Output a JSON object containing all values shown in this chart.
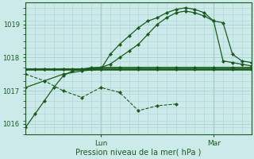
{
  "background_color": "#cceaea",
  "grid_color": "#aad4d4",
  "line_color": "#1a5c1a",
  "ylabel_ticks": [
    1016,
    1017,
    1018,
    1019
  ],
  "xlim": [
    0,
    72
  ],
  "ylim": [
    1015.7,
    1019.65
  ],
  "xlabel": "Pression niveau de la mer( hPa )",
  "lun_x": 24,
  "mar_x": 60,
  "series": [
    {
      "x": [
        0,
        3,
        6,
        9,
        12,
        15,
        18,
        21,
        24,
        27,
        30,
        33,
        36,
        39,
        42,
        45,
        48,
        51,
        54,
        57,
        60,
        63,
        66,
        69,
        72
      ],
      "y": [
        1015.9,
        1016.3,
        1016.7,
        1017.1,
        1017.45,
        1017.6,
        1017.65,
        1017.7,
        1017.7,
        1017.8,
        1018.0,
        1018.2,
        1018.4,
        1018.7,
        1019.0,
        1019.2,
        1019.35,
        1019.4,
        1019.35,
        1019.25,
        1019.1,
        1017.9,
        1017.85,
        1017.8,
        1017.75
      ],
      "linestyle": "-",
      "marker": "D",
      "markersize": 2,
      "linewidth": 0.9
    },
    {
      "x": [
        0,
        3,
        6,
        9,
        12,
        15,
        18,
        21,
        24,
        27,
        30,
        33,
        36,
        39,
        42,
        45,
        48,
        51,
        54,
        57,
        60,
        63,
        66,
        69,
        72
      ],
      "y": [
        1017.65,
        1017.65,
        1017.65,
        1017.65,
        1017.65,
        1017.65,
        1017.65,
        1017.65,
        1017.65,
        1018.1,
        1018.4,
        1018.65,
        1018.9,
        1019.1,
        1019.2,
        1019.35,
        1019.45,
        1019.5,
        1019.45,
        1019.35,
        1019.1,
        1019.05,
        1018.1,
        1017.9,
        1017.85
      ],
      "linestyle": "-",
      "marker": "D",
      "markersize": 2,
      "linewidth": 0.9
    },
    {
      "x": [
        0,
        6,
        12,
        18,
        24,
        30,
        36,
        42,
        48,
        54,
        60,
        66,
        72
      ],
      "y": [
        1017.65,
        1017.65,
        1017.65,
        1017.65,
        1017.7,
        1017.7,
        1017.7,
        1017.7,
        1017.7,
        1017.7,
        1017.7,
        1017.7,
        1017.7
      ],
      "linestyle": "-",
      "marker": "D",
      "markersize": 2,
      "linewidth": 1.2
    },
    {
      "x": [
        0,
        6,
        12,
        18,
        24,
        30,
        36,
        42,
        48
      ],
      "y": [
        1017.5,
        1017.3,
        1017.0,
        1016.8,
        1017.1,
        1016.95,
        1016.4,
        1016.55,
        1016.6
      ],
      "linestyle": "--",
      "marker": "D",
      "markersize": 2,
      "linewidth": 0.8
    },
    {
      "x": [
        0,
        6,
        12,
        18,
        24,
        30,
        36,
        42,
        48,
        54,
        60,
        66,
        72
      ],
      "y": [
        1017.1,
        1017.3,
        1017.5,
        1017.6,
        1017.65,
        1017.65,
        1017.65,
        1017.65,
        1017.65,
        1017.65,
        1017.65,
        1017.65,
        1017.65
      ],
      "linestyle": "-",
      "marker": "D",
      "markersize": 2,
      "linewidth": 0.9
    },
    {
      "x": [
        0,
        72
      ],
      "y": [
        1017.65,
        1017.65
      ],
      "linestyle": "-",
      "marker": "",
      "markersize": 0,
      "linewidth": 1.8
    }
  ]
}
